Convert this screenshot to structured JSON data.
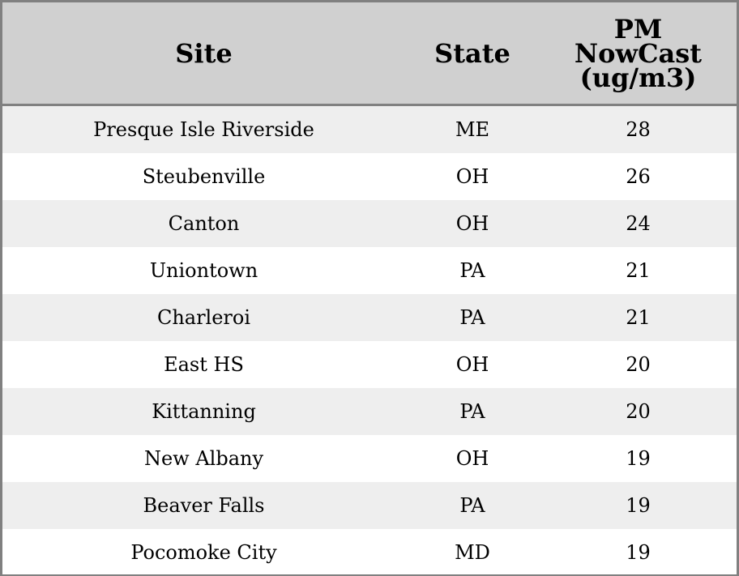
{
  "headers": [
    "Site",
    "State",
    "PM NowCast (ug/m3)"
  ],
  "header_lines": {
    "pm": [
      "PM",
      "NowCast",
      "(ug/m3)"
    ]
  },
  "rows": [
    {
      "site": "Presque Isle Riverside",
      "state": "ME",
      "pm": "28"
    },
    {
      "site": "Steubenville",
      "state": "OH",
      "pm": "26"
    },
    {
      "site": "Canton",
      "state": "OH",
      "pm": "24"
    },
    {
      "site": "Uniontown",
      "state": "PA",
      "pm": "21"
    },
    {
      "site": "Charleroi",
      "state": "PA",
      "pm": "21"
    },
    {
      "site": "East HS",
      "state": "OH",
      "pm": "20"
    },
    {
      "site": "Kittanning",
      "state": "PA",
      "pm": "20"
    },
    {
      "site": "New Albany",
      "state": "OH",
      "pm": "19"
    },
    {
      "site": "Beaver Falls",
      "state": "PA",
      "pm": "19"
    },
    {
      "site": "Pocomoke City",
      "state": "MD",
      "pm": "19"
    }
  ],
  "colors": {
    "header_bg": "#d0d0d0",
    "border": "#808080",
    "row_alt": "#eeeeee",
    "row": "#ffffff"
  }
}
